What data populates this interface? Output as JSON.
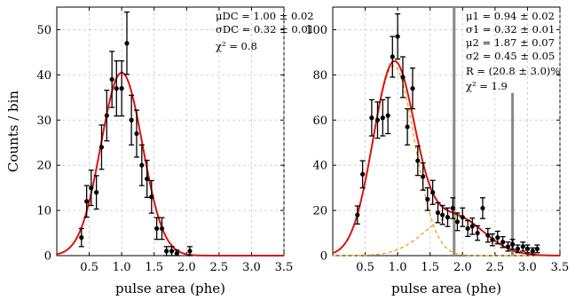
{
  "chart_data": [
    {
      "type": "scatter",
      "xlabel": "pulse area (phe)",
      "ylabel": "Counts / bin",
      "xlim": [
        0,
        3.5
      ],
      "ylim": [
        0,
        55
      ],
      "xticks": [
        0.5,
        1.0,
        1.5,
        2.0,
        2.5,
        3.0,
        3.5
      ],
      "xtick_labels": [
        "0.5",
        "1.0",
        "1.5",
        "2.0",
        "2.5",
        "3.0",
        "3.5"
      ],
      "yticks": [
        0,
        10,
        20,
        30,
        40,
        50
      ],
      "ytick_labels": [
        "0",
        "10",
        "20",
        "30",
        "40",
        "50"
      ],
      "grid": true,
      "annotations": [
        "μDC = 1.00 ± 0.02",
        "σDC = 0.32 ± 0.01",
        "χ² = 0.8"
      ],
      "series": [
        {
          "kind": "points_with_errorbars",
          "color": "#000000",
          "x": [
            0.38,
            0.46,
            0.53,
            0.61,
            0.69,
            0.77,
            0.85,
            0.92,
            1.0,
            1.08,
            1.15,
            1.23,
            1.31,
            1.39,
            1.46,
            1.54,
            1.62,
            1.69,
            1.77,
            1.85,
            2.05
          ],
          "y": [
            4,
            12,
            15,
            14,
            24,
            31,
            39,
            37,
            37,
            47,
            30,
            27,
            20,
            17,
            13,
            6,
            6,
            1,
            1,
            0.5,
            1
          ],
          "yerr": [
            2.0,
            3.5,
            3.9,
            3.7,
            4.9,
            5.6,
            6.2,
            6.1,
            6.1,
            6.9,
            5.5,
            5.2,
            4.5,
            4.1,
            3.6,
            2.4,
            2.4,
            1.0,
            1.0,
            0.7,
            1.0
          ]
        },
        {
          "kind": "gaussian_fit",
          "color": "#dd1111",
          "amplitude": 40.5,
          "mean": 1.0,
          "sigma": 0.32
        }
      ]
    },
    {
      "type": "scatter",
      "xlabel": "pulse area (phe)",
      "ylabel": "",
      "xlim": [
        0,
        3.5
      ],
      "ylim": [
        0,
        110
      ],
      "xticks": [
        0.5,
        1.0,
        1.5,
        2.0,
        2.5,
        3.0,
        3.5
      ],
      "xtick_labels": [
        "0.5",
        "1.0",
        "1.5",
        "2.0",
        "2.5",
        "3.0",
        "3.5"
      ],
      "yticks": [
        0,
        20,
        40,
        60,
        80,
        100
      ],
      "ytick_labels": [
        "0",
        "20",
        "40",
        "60",
        "80",
        "100"
      ],
      "grid": true,
      "annotations": [
        "μ1 = 0.94 ± 0.02",
        "σ1 = 0.32 ± 0.01",
        "μ2 = 1.87 ± 0.07",
        "σ2 = 0.45 ± 0.05",
        "R = (20.8 ± 3.0)%",
        "χ² = 1.9"
      ],
      "vertical_lines": [
        {
          "x": 1.87,
          "y_top": 110,
          "color": "#888888"
        },
        {
          "x": 2.77,
          "y_top": 72,
          "color": "#888888"
        }
      ],
      "series": [
        {
          "kind": "points_with_errorbars",
          "color": "#000000",
          "x": [
            0.38,
            0.46,
            0.6,
            0.69,
            0.77,
            0.85,
            0.92,
            1.0,
            1.08,
            1.15,
            1.23,
            1.31,
            1.39,
            1.46,
            1.54,
            1.62,
            1.69,
            1.77,
            1.85,
            1.92,
            2.0,
            2.08,
            2.15,
            2.23,
            2.31,
            2.39,
            2.46,
            2.54,
            2.62,
            2.7,
            2.77,
            2.85,
            2.93,
            3.0,
            3.08,
            3.15
          ],
          "y": [
            18,
            36,
            61,
            60,
            61,
            62,
            88,
            97,
            79,
            57,
            74,
            42,
            35,
            25,
            28,
            19,
            18,
            17,
            21,
            15,
            17,
            12,
            13,
            10,
            21,
            9,
            7,
            8,
            6,
            4,
            5,
            3,
            4,
            3,
            2,
            3
          ],
          "yerr": [
            4,
            6,
            8,
            8,
            8,
            8,
            9,
            10,
            9,
            8,
            9,
            6.5,
            6,
            5,
            5.3,
            4.4,
            4.2,
            4.1,
            4.6,
            3.9,
            4.1,
            3.5,
            3.6,
            3.2,
            4.6,
            3,
            2.6,
            2.8,
            2.4,
            2,
            2.2,
            1.7,
            2,
            1.7,
            1.4,
            1.7
          ]
        },
        {
          "kind": "double_gaussian_fit",
          "color": "#dd1111",
          "component_color": "#e8a317",
          "components": [
            {
              "amplitude": 84,
              "mean": 0.94,
              "sigma": 0.32
            },
            {
              "amplitude": 17.5,
              "mean": 1.87,
              "sigma": 0.45
            }
          ]
        }
      ]
    }
  ]
}
